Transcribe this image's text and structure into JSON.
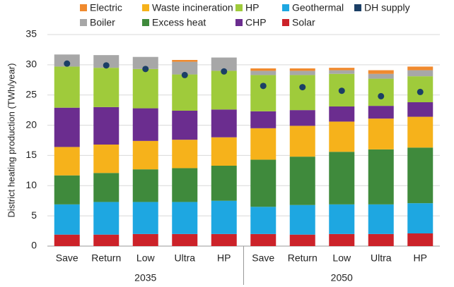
{
  "chart_data": {
    "type": "stacked_bar",
    "ylabel": "District heating production (TWh/year)",
    "categories": [
      "Save",
      "Return",
      "Low",
      "Ultra",
      "HP",
      "Save",
      "Return",
      "Low",
      "Ultra",
      "HP"
    ],
    "groups": [
      "2035",
      "2050"
    ],
    "ylim": [
      0,
      35
    ],
    "yticks": [
      0,
      5,
      10,
      15,
      20,
      25,
      30,
      35
    ],
    "grid": true,
    "series": [
      {
        "name": "Solar",
        "color": "#cc2229",
        "values": [
          1.9,
          1.9,
          2.0,
          2.0,
          2.0,
          2.0,
          1.9,
          2.0,
          2.0,
          2.1
        ]
      },
      {
        "name": "Geothermal",
        "color": "#1ea7e1",
        "values": [
          5.0,
          5.4,
          5.3,
          5.3,
          5.5,
          4.5,
          4.9,
          4.9,
          4.9,
          5.0
        ]
      },
      {
        "name": "Excess heat",
        "color": "#3f8a3c",
        "values": [
          4.8,
          4.8,
          5.4,
          5.6,
          5.8,
          7.8,
          8.0,
          8.7,
          9.1,
          9.2
        ]
      },
      {
        "name": "Waste incineration",
        "color": "#f6b21b",
        "values": [
          4.7,
          4.7,
          4.7,
          4.7,
          4.7,
          5.2,
          5.1,
          5.0,
          5.1,
          5.1
        ]
      },
      {
        "name": "CHP",
        "color": "#6b2d8f",
        "values": [
          6.5,
          6.2,
          5.4,
          4.8,
          4.6,
          2.8,
          2.6,
          2.5,
          2.1,
          2.4
        ]
      },
      {
        "name": "HP",
        "color": "#9fcb3b",
        "values": [
          6.8,
          6.5,
          6.5,
          6.0,
          6.4,
          6.0,
          5.8,
          5.4,
          4.5,
          4.3
        ]
      },
      {
        "name": "Boiler",
        "color": "#a7a7a7",
        "values": [
          2.0,
          2.1,
          2.0,
          2.1,
          2.2,
          0.7,
          0.7,
          0.6,
          0.8,
          1.0
        ]
      },
      {
        "name": "Electric",
        "color": "#f08a2e",
        "values": [
          0,
          0,
          0,
          0.3,
          0,
          0.4,
          0.4,
          0.4,
          0.6,
          0.6
        ]
      }
    ],
    "dh_supply": {
      "name": "DH supply",
      "color": "#1b3f66",
      "values": [
        30.2,
        29.9,
        29.3,
        28.3,
        28.9,
        26.5,
        26.3,
        25.7,
        24.8,
        25.5
      ]
    }
  }
}
